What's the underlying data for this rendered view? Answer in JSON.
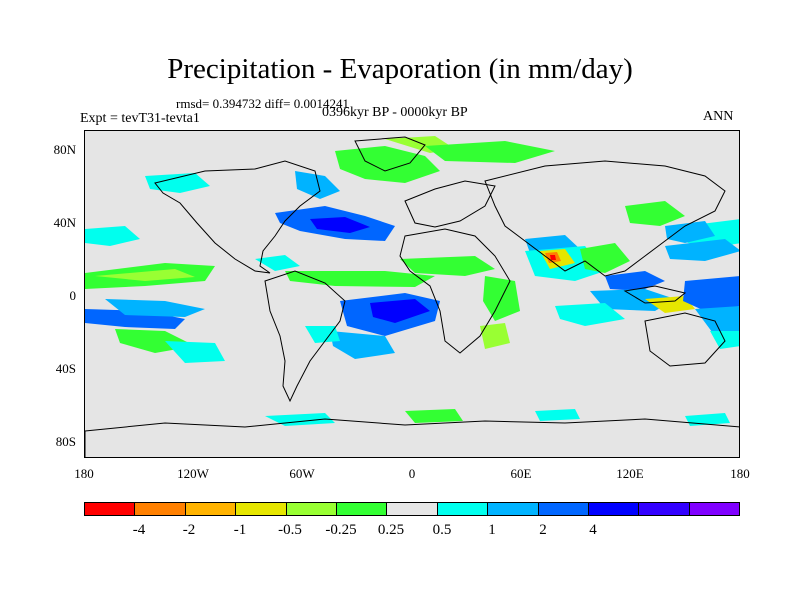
{
  "title": "Precipitation - Evaporation (in mm/day)",
  "stats": "rmsd= 0.394732 diff= 0.0014241",
  "experiment": "Expt = tevT31-tevta1",
  "period": "0396kyr BP - 0000kyr BP",
  "season": "ANN",
  "lat_labels": [
    "80N",
    "40N",
    "0",
    "40S",
    "80S"
  ],
  "lon_labels": [
    "180",
    "120W",
    "60W",
    "0",
    "60E",
    "120E",
    "180"
  ],
  "colorbar": {
    "colors": [
      "#ff0000",
      "#ff8000",
      "#ffb300",
      "#e6e600",
      "#99ff33",
      "#33ff33",
      "#e6e6e6",
      "#00ffee",
      "#00b3ff",
      "#0066ff",
      "#0000ff",
      "#3300ff",
      "#8000ff"
    ],
    "labels": [
      "-4",
      "-2",
      "-1",
      "-0.5",
      "-0.25",
      "0.25",
      "0.5",
      "1",
      "2",
      "4"
    ]
  },
  "colors": {
    "background": "#e5e5e5",
    "neutral": "#e6e6e6",
    "green": "#33ff33",
    "light_green": "#99ff33",
    "cyan": "#00ffee",
    "sky": "#00b3ff",
    "blue": "#0066ff",
    "deep_blue": "#0000ff",
    "yellow": "#e6e600",
    "orange": "#ff8000",
    "red": "#ff0000"
  }
}
